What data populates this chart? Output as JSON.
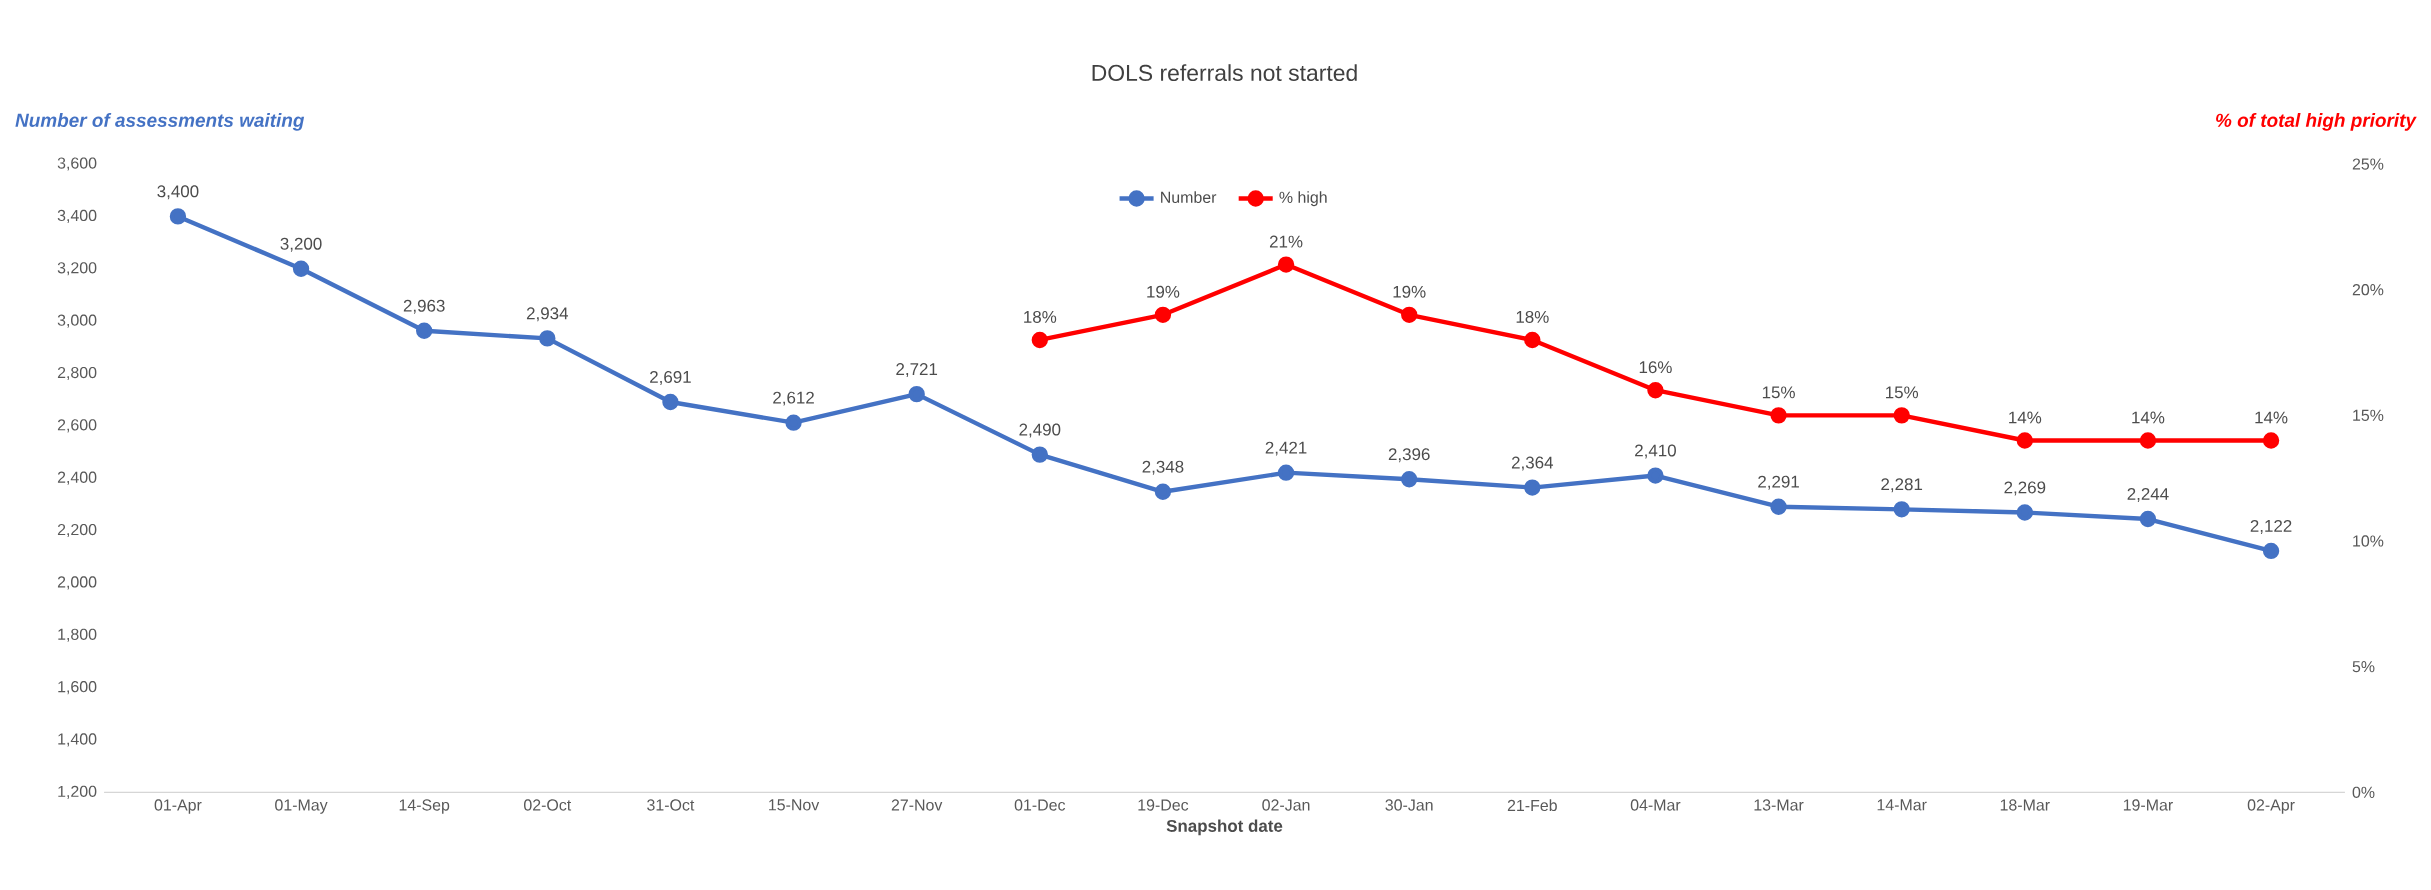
{
  "chart_data": {
    "type": "line",
    "title": "DOLS referrals not started",
    "xlabel": "Snapshot date",
    "ylabel": "Number of assessments waiting",
    "y2label": "% of total high priority",
    "categories": [
      "01-Apr",
      "01-May",
      "14-Sep",
      "02-Oct",
      "31-Oct",
      "15-Nov",
      "27-Nov",
      "01-Dec",
      "19-Dec",
      "02-Jan",
      "30-Jan",
      "21-Feb",
      "04-Mar",
      "13-Mar",
      "14-Mar",
      "18-Mar",
      "19-Mar",
      "02-Apr"
    ],
    "series": [
      {
        "name": "Number",
        "color": "#4472c4",
        "axis": "y",
        "values": [
          3400,
          3200,
          2963,
          2934,
          2691,
          2612,
          2721,
          2490,
          2348,
          2421,
          2396,
          2364,
          2410,
          2291,
          2281,
          2269,
          2244,
          2122
        ],
        "value_labels": [
          "3,400",
          "3,200",
          "2,963",
          "2,934",
          "2,691",
          "2,612",
          "2,721",
          "2,490",
          "2,348",
          "2,421",
          "2,396",
          "2,364",
          "2,410",
          "2,291",
          "2,281",
          "2,269",
          "2,244",
          "2,122"
        ]
      },
      {
        "name": "% high",
        "color": "#ff0000",
        "axis": "y2",
        "values": [
          null,
          null,
          null,
          null,
          null,
          null,
          null,
          18,
          19,
          21,
          19,
          18,
          16,
          15,
          15,
          14,
          14,
          14
        ],
        "value_labels": [
          null,
          null,
          null,
          null,
          null,
          null,
          null,
          "18%",
          "19%",
          "21%",
          "19%",
          "18%",
          "16%",
          "15%",
          "15%",
          "14%",
          "14%",
          "14%"
        ]
      }
    ],
    "ylim": [
      1200,
      3600
    ],
    "yticks": [
      {
        "value": 1200,
        "label": "1,200"
      },
      {
        "value": 1400,
        "label": "1,400"
      },
      {
        "value": 1600,
        "label": "1,600"
      },
      {
        "value": 1800,
        "label": "1,800"
      },
      {
        "value": 2000,
        "label": "2,000"
      },
      {
        "value": 2200,
        "label": "2,200"
      },
      {
        "value": 2400,
        "label": "2,400"
      },
      {
        "value": 2600,
        "label": "2,600"
      },
      {
        "value": 2800,
        "label": "2,800"
      },
      {
        "value": 3000,
        "label": "3,000"
      },
      {
        "value": 3200,
        "label": "3,200"
      },
      {
        "value": 3400,
        "label": "3,400"
      },
      {
        "value": 3600,
        "label": "3,600"
      }
    ],
    "y2lim": [
      0,
      25
    ],
    "y2ticks": [
      {
        "value": 0,
        "label": "0%"
      },
      {
        "value": 5,
        "label": "5%"
      },
      {
        "value": 10,
        "label": "10%"
      },
      {
        "value": 15,
        "label": "15%"
      },
      {
        "value": 20,
        "label": "20%"
      },
      {
        "value": 25,
        "label": "25%"
      }
    ],
    "legend": "top",
    "marker": "circle",
    "line_style": "solid"
  }
}
